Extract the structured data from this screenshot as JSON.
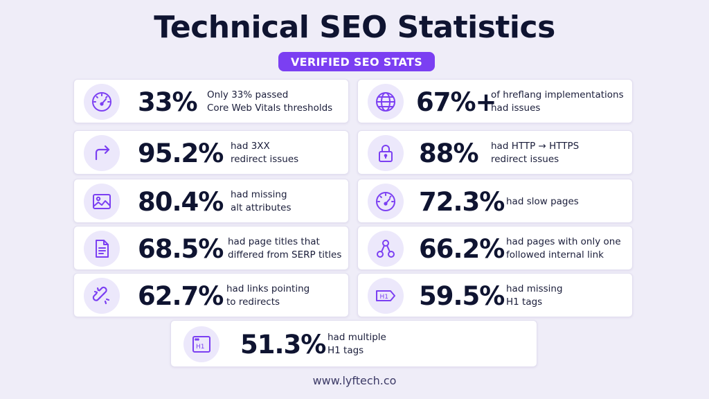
{
  "title": "Technical SEO Statistics",
  "badge": "VERIFIED SEO STATS",
  "accent_color": "#7b3ff2",
  "stats": [
    {
      "icon": "speedometer-icon",
      "value": "33%",
      "line1": "Only 33% passed",
      "line2": "Core Web Vitals thresholds"
    },
    {
      "icon": "globe-icon",
      "value": "67%+",
      "line1": "of hreflang implementations",
      "line2": "had issues"
    },
    {
      "icon": "redirect-arrow-icon",
      "value": "95.2%",
      "line1": "had 3XX",
      "line2": "redirect issues"
    },
    {
      "icon": "padlock-icon",
      "value": "88%",
      "line1": "had HTTP → HTTPS",
      "line2": "redirect issues"
    },
    {
      "icon": "image-icon",
      "value": "80.4%",
      "line1": "had missing",
      "line2": "alt attributes"
    },
    {
      "icon": "speedometer-icon",
      "value": "72.3%",
      "line1": "had slow pages",
      "line2": ""
    },
    {
      "icon": "document-icon",
      "value": "68.5%",
      "line1": "had page titles that",
      "line2": "differed from SERP titles"
    },
    {
      "icon": "network-nodes-icon",
      "value": "66.2%",
      "line1": "had pages with only one",
      "line2": "followed internal link"
    },
    {
      "icon": "broken-link-icon",
      "value": "62.7%",
      "line1": "had links pointing",
      "line2": "to redirects"
    },
    {
      "icon": "h1-tag-icon",
      "value": "59.5%",
      "line1": "had missing",
      "line2": "H1 tags"
    },
    {
      "icon": "h1-box-icon",
      "value": "51.3%",
      "line1": "had multiple",
      "line2": "H1 tags"
    }
  ],
  "footer": "www.lyftech.co"
}
